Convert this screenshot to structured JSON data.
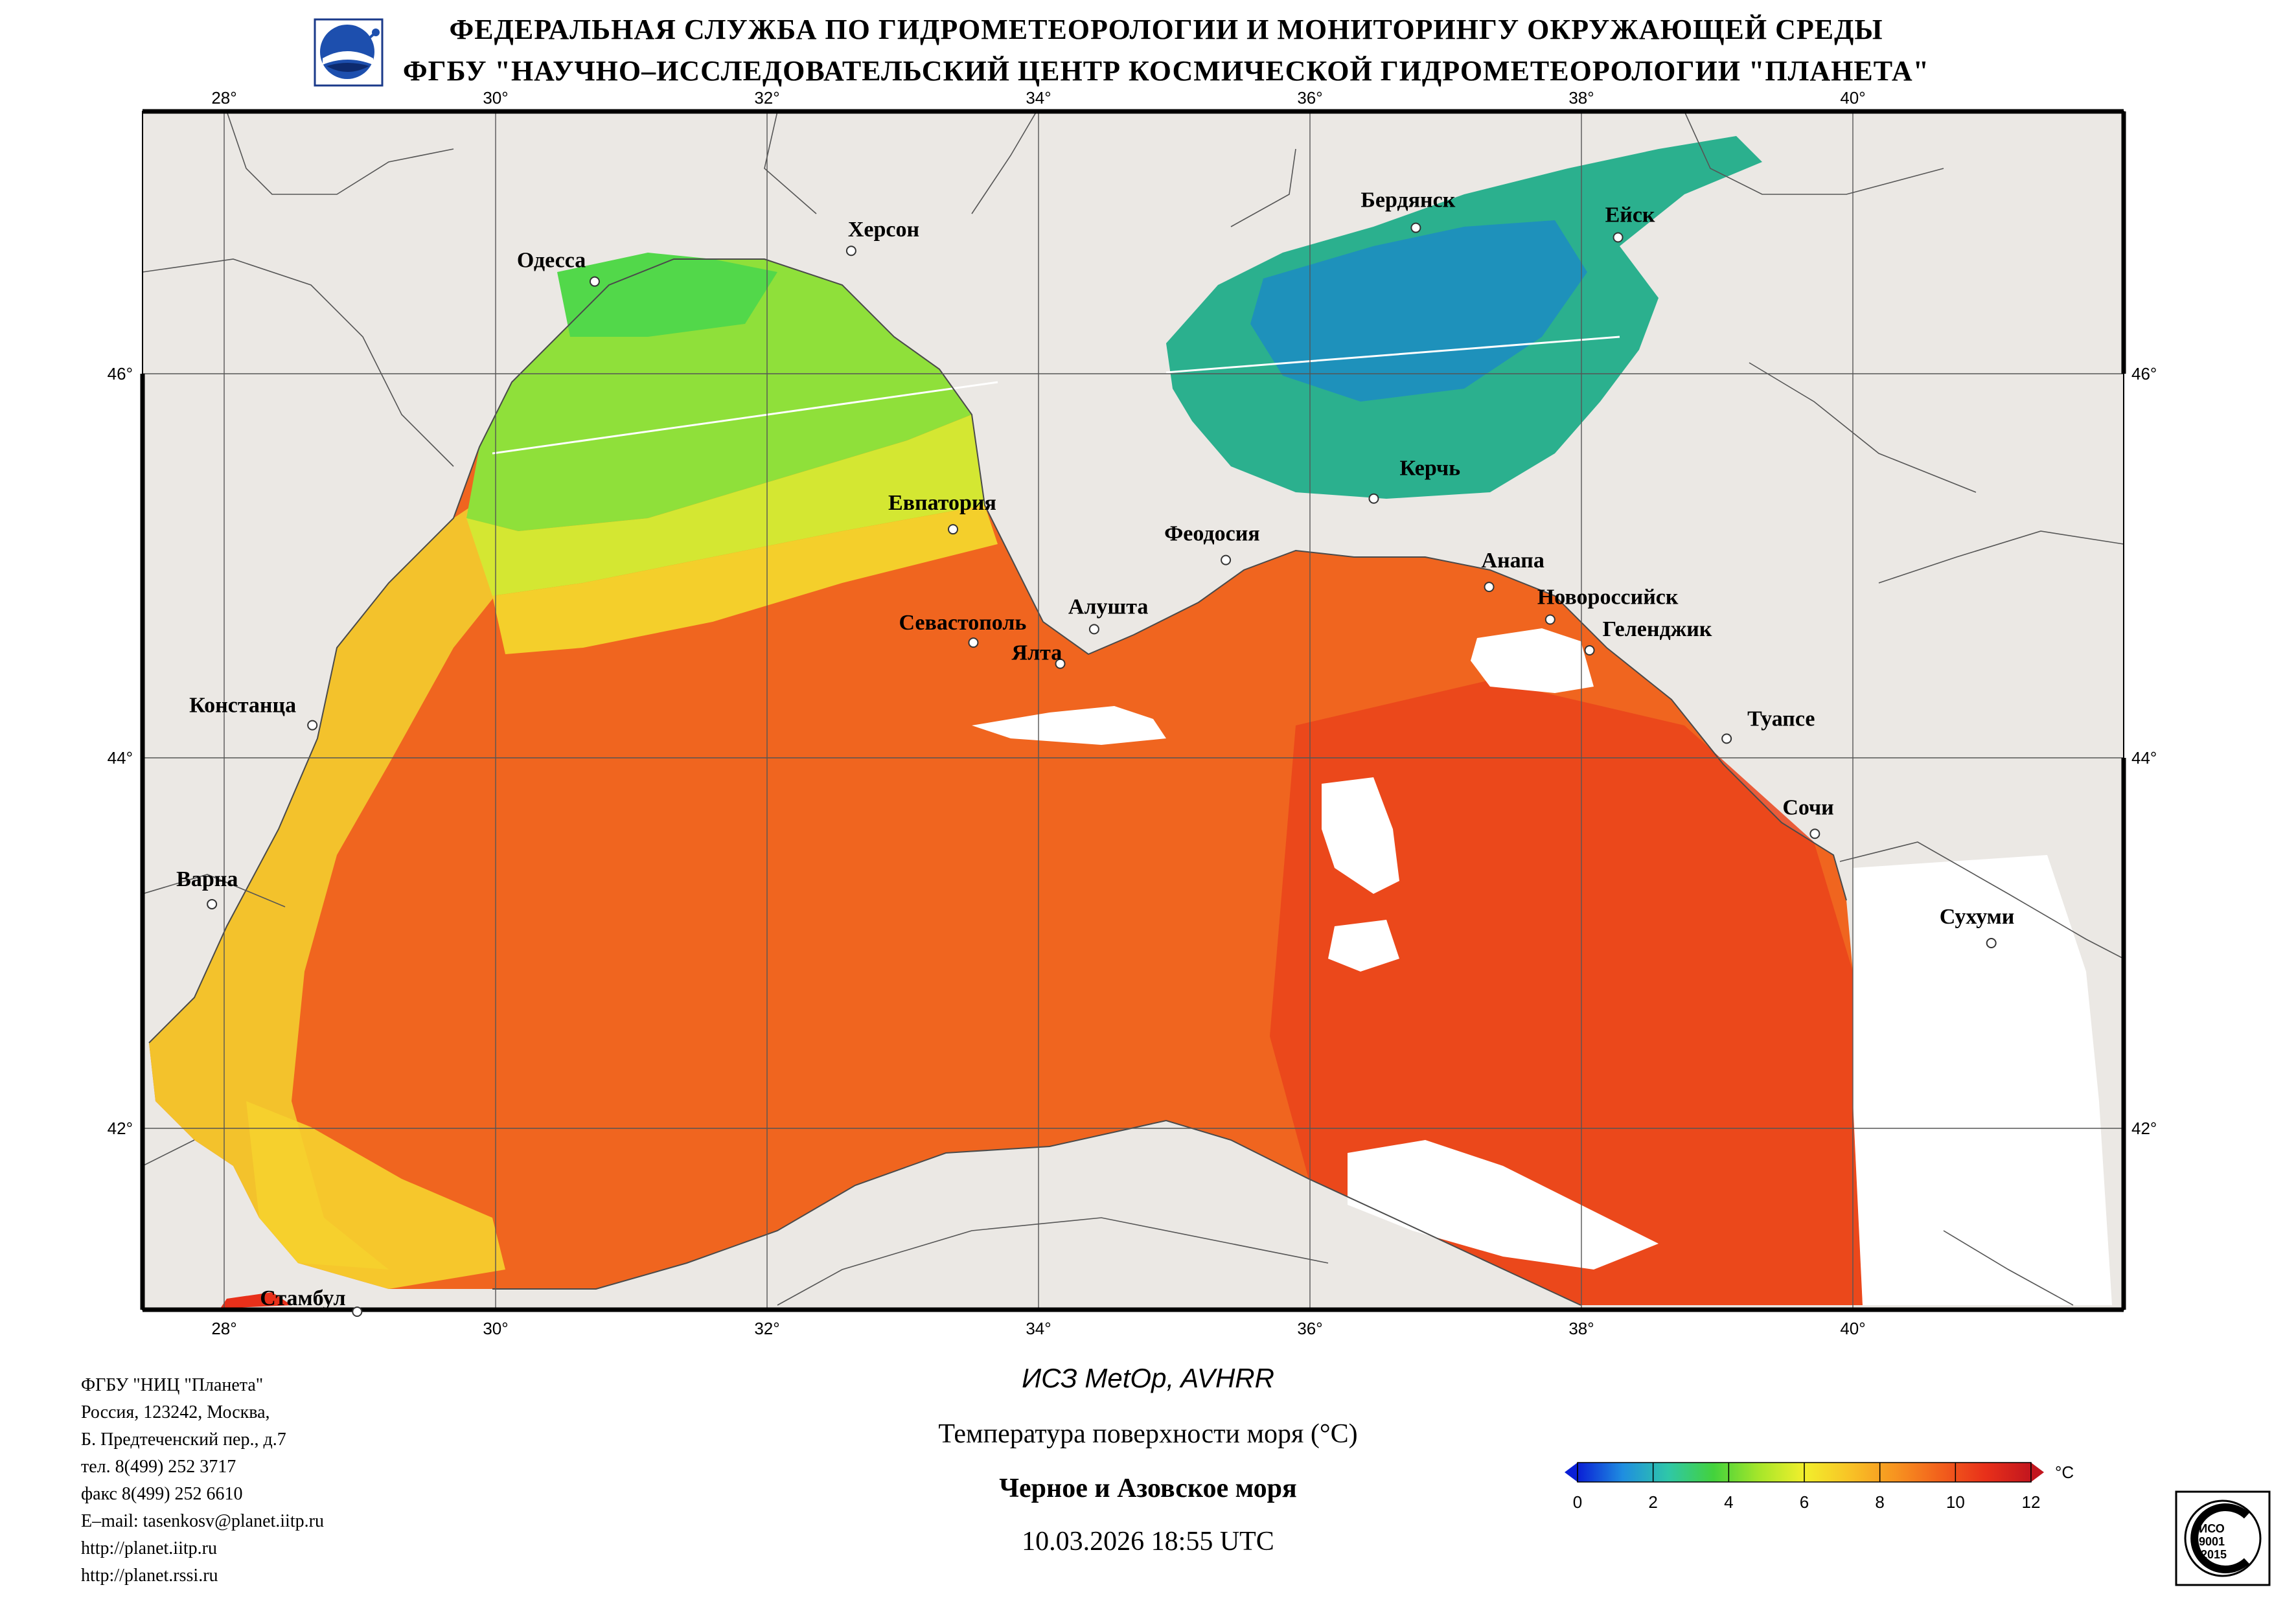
{
  "header": {
    "line1": "ФЕДЕРАЛЬНАЯ СЛУЖБА ПО ГИДРОМЕТЕОРОЛОГИИ И МОНИТОРИНГУ ОКРУЖАЮЩЕЙ СРЕДЫ",
    "line2": "ФГБУ \"НАУЧНО–ИССЛЕДОВАТЕЛЬСКИЙ ЦЕНТР КОСМИЧЕСКОЙ ГИДРОМЕТЕОРОЛОГИИ \"ПЛАНЕТА\""
  },
  "map": {
    "lon_labels": [
      "28°",
      "30°",
      "32°",
      "34°",
      "36°",
      "38°",
      "40°"
    ],
    "lat_labels": [
      "46°",
      "44°",
      "42°"
    ],
    "extent": {
      "lon": [
        27.5,
        42.0
      ],
      "lat": [
        41.0,
        47.3
      ]
    },
    "colors": {
      "land": "#ebe8e4",
      "border": "#000000",
      "cloud": "#ffffff"
    },
    "cities": [
      {
        "name": "Одесса",
        "lon": 30.73,
        "lat": 46.48
      },
      {
        "name": "Херсон",
        "lon": 32.62,
        "lat": 46.64
      },
      {
        "name": "Бердянск",
        "lon": 36.78,
        "lat": 46.76
      },
      {
        "name": "Ейск",
        "lon": 38.27,
        "lat": 46.71
      },
      {
        "name": "Евпатория",
        "lon": 33.37,
        "lat": 45.19
      },
      {
        "name": "Феодосия",
        "lon": 35.38,
        "lat": 45.03
      },
      {
        "name": "Керчь",
        "lon": 36.47,
        "lat": 45.35
      },
      {
        "name": "Анапа",
        "lon": 37.32,
        "lat": 44.89
      },
      {
        "name": "Новороссийск",
        "lon": 37.77,
        "lat": 44.72
      },
      {
        "name": "Геленджик",
        "lon": 38.06,
        "lat": 44.56
      },
      {
        "name": "Севастополь",
        "lon": 33.52,
        "lat": 44.6
      },
      {
        "name": "Алушта",
        "lon": 34.41,
        "lat": 44.67
      },
      {
        "name": "Ялта",
        "lon": 34.16,
        "lat": 44.49
      },
      {
        "name": "Констанца",
        "lon": 28.65,
        "lat": 44.17
      },
      {
        "name": "Туапсе",
        "lon": 39.07,
        "lat": 44.1
      },
      {
        "name": "Сочи",
        "lon": 39.72,
        "lat": 43.59
      },
      {
        "name": "Варна",
        "lon": 27.91,
        "lat": 43.21
      },
      {
        "name": "Сухуми",
        "lon": 41.02,
        "lat": 43.0
      },
      {
        "name": "Стамбул",
        "lon": 28.98,
        "lat": 41.01
      }
    ]
  },
  "org_info": [
    "ФГБУ \"НИЦ \"Планета\"",
    "Россия, 123242, Москва,",
    "Б. Предтеченский пер., д.7",
    "тел. 8(499) 252 3717",
    "факс 8(499) 252 6610",
    "E–mail: tasenkosv@planet.iitp.ru",
    "http://planet.iitp.ru",
    "http://planet.rssi.ru"
  ],
  "product": {
    "satellite": "ИСЗ MetOp, AVHRR",
    "parameter": "Температура поверхности моря (°C)",
    "region": "Черное и Азовское моря",
    "datetime": "10.03.2026 18:55 UTC"
  },
  "colorbar": {
    "unit": "°C",
    "ticks": [
      "0",
      "2",
      "4",
      "6",
      "8",
      "10",
      "12"
    ],
    "range": [
      0,
      12
    ],
    "stops": [
      "#0a1fd6",
      "#1f8ee0",
      "#2fc7a8",
      "#43d23c",
      "#a6e62a",
      "#f2ef2c",
      "#f8c326",
      "#f79420",
      "#f2601c",
      "#e8301a",
      "#c2161e"
    ]
  },
  "iso_badge": {
    "line1": "ИСО",
    "line2": "9001",
    "line3": "-2015"
  }
}
